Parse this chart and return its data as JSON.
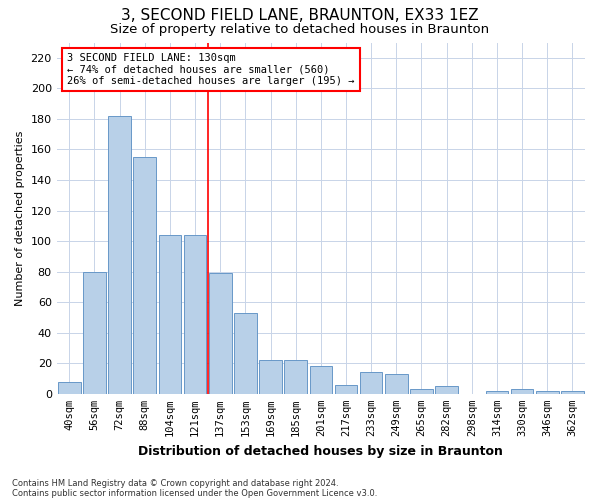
{
  "title": "3, SECOND FIELD LANE, BRAUNTON, EX33 1EZ",
  "subtitle": "Size of property relative to detached houses in Braunton",
  "xlabel": "Distribution of detached houses by size in Braunton",
  "ylabel": "Number of detached properties",
  "bar_values": [
    8,
    80,
    182,
    155,
    104,
    104,
    79,
    53,
    22,
    22,
    18,
    6,
    14,
    13,
    3,
    5,
    0,
    2,
    3,
    2,
    2
  ],
  "bin_labels": [
    "40sqm",
    "56sqm",
    "72sqm",
    "88sqm",
    "104sqm",
    "121sqm",
    "137sqm",
    "153sqm",
    "169sqm",
    "185sqm",
    "201sqm",
    "217sqm",
    "233sqm",
    "249sqm",
    "265sqm",
    "282sqm",
    "298sqm",
    "314sqm",
    "330sqm",
    "346sqm",
    "362sqm"
  ],
  "bar_color": "#b8d0e8",
  "bar_edge_color": "#6898c8",
  "ylim": [
    0,
    230
  ],
  "yticks": [
    0,
    20,
    40,
    60,
    80,
    100,
    120,
    140,
    160,
    180,
    200,
    220
  ],
  "red_line_index": 6,
  "annotation_line1": "3 SECOND FIELD LANE: 130sqm",
  "annotation_line2": "← 74% of detached houses are smaller (560)",
  "annotation_line3": "26% of semi-detached houses are larger (195) →",
  "footnote1": "Contains HM Land Registry data © Crown copyright and database right 2024.",
  "footnote2": "Contains public sector information licensed under the Open Government Licence v3.0.",
  "background_color": "#ffffff",
  "grid_color": "#c8d4e8",
  "title_fontsize": 11,
  "subtitle_fontsize": 9.5,
  "xlabel_fontsize": 9,
  "ylabel_fontsize": 8,
  "tick_fontsize": 7.5,
  "footnote_fontsize": 6
}
